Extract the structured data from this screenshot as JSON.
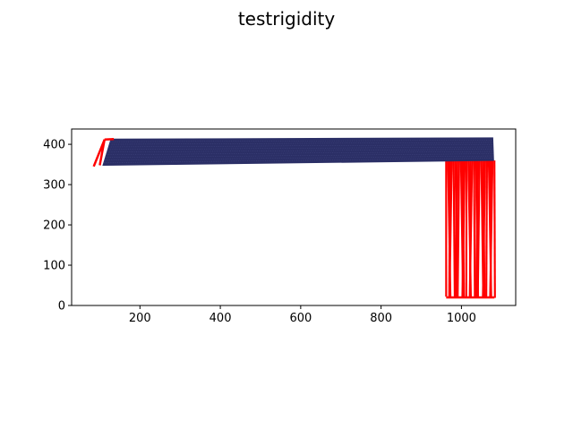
{
  "chart_data": {
    "type": "line",
    "title": "testrigidity",
    "xlabel": "",
    "ylabel": "",
    "xlim": [
      30,
      1135
    ],
    "ylim": [
      0,
      438
    ],
    "x_ticks": [
      200,
      400,
      600,
      800,
      1000
    ],
    "y_ticks": [
      0,
      100,
      200,
      300,
      400
    ],
    "grid": false,
    "legend": "none",
    "series": [
      {
        "color": "#2b2f66",
        "style": "dense mesh band (beam)",
        "outline": [
          [
            108,
            348
          ],
          [
            1080,
            360
          ],
          [
            1078,
            416
          ],
          [
            128,
            413
          ]
        ]
      },
      {
        "color": "#ff0000",
        "style": "vertical lines from beam down to ground",
        "segments_x_range": [
          962,
          1082
        ],
        "top_y": 360,
        "bottom_y": 20
      },
      {
        "color": "#ff0000",
        "style": "short lines at left anchor",
        "outline": [
          [
            85,
            345
          ],
          [
            112,
            412
          ],
          [
            100,
            348
          ]
        ]
      }
    ],
    "colors": {
      "beam": "#2b2f66",
      "constraints": "#ff0000",
      "axes": "#000000"
    }
  }
}
